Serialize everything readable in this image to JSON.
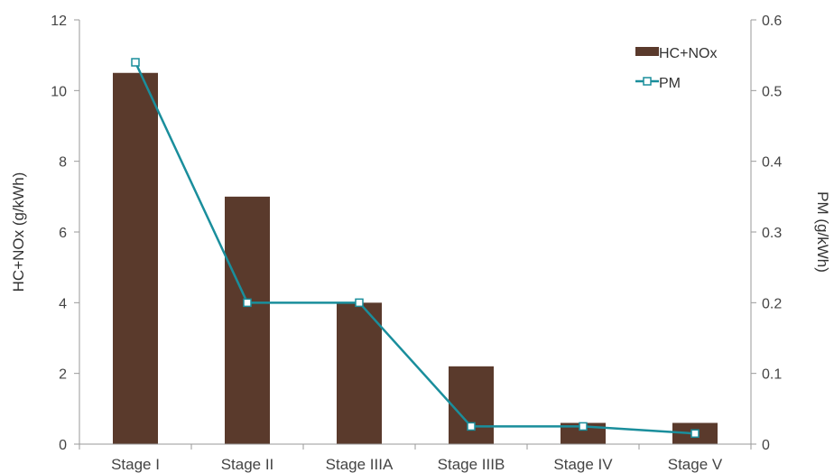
{
  "chart_data": {
    "type": "bar",
    "categories": [
      "Stage I",
      "Stage II",
      "Stage IIIA",
      "Stage IIIB",
      "Stage IV",
      "Stage V"
    ],
    "series": [
      {
        "name": "HC+NOx",
        "type": "bar",
        "axis": "left",
        "color": "#5a3a2c",
        "values": [
          10.5,
          7.0,
          4.0,
          2.2,
          0.6,
          0.6
        ]
      },
      {
        "name": "PM",
        "type": "line",
        "axis": "right",
        "color": "#1a8e9c",
        "values": [
          0.54,
          0.2,
          0.2,
          0.025,
          0.025,
          0.015
        ]
      }
    ],
    "ylabel": "HC+NOx (g/kWh)",
    "y2label": "PM (g/kWh)",
    "ylim": [
      0,
      12
    ],
    "y2lim": [
      0,
      0.6
    ],
    "yticks": [
      "0",
      "2",
      "4",
      "6",
      "8",
      "10",
      "12"
    ],
    "y2ticks": [
      "0",
      "0.1",
      "0.2",
      "0.3",
      "0.4",
      "0.5",
      "0.6"
    ],
    "grid": false,
    "legend_position": "top-right"
  }
}
